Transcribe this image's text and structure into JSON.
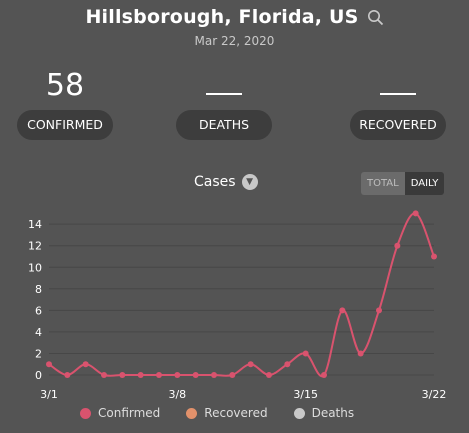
{
  "location": {
    "title": "Hillsborough, Florida, US",
    "date": "Mar 22, 2020"
  },
  "stats": [
    {
      "value": "58",
      "label": "CONFIRMED"
    },
    {
      "value": "",
      "label": "DEATHS"
    },
    {
      "value": "",
      "label": "RECOVERED"
    }
  ],
  "chart_controls": {
    "metric": "Cases",
    "toggle": [
      "TOTAL",
      "DAILY"
    ],
    "active": "DAILY"
  },
  "chart_data": {
    "type": "line",
    "x": [
      "3/1",
      "3/2",
      "3/3",
      "3/4",
      "3/5",
      "3/6",
      "3/7",
      "3/8",
      "3/9",
      "3/10",
      "3/11",
      "3/12",
      "3/13",
      "3/14",
      "3/15",
      "3/16",
      "3/17",
      "3/18",
      "3/19",
      "3/20",
      "3/21",
      "3/22"
    ],
    "x_tick_labels": [
      "3/1",
      "3/8",
      "3/15",
      "3/22"
    ],
    "y_ticks": [
      0,
      2,
      4,
      6,
      8,
      10,
      12,
      14
    ],
    "ylim": [
      0,
      15.5
    ],
    "series": [
      {
        "name": "Confirmed",
        "color": "#d9536e",
        "values": [
          1,
          0,
          1,
          0,
          0,
          0,
          0,
          0,
          0,
          0,
          0,
          1,
          0,
          1,
          2,
          0,
          6,
          2,
          6,
          12,
          15,
          11
        ]
      }
    ],
    "grid": true
  },
  "legend": [
    {
      "label": "Confirmed",
      "color": "#d9536e"
    },
    {
      "label": "Recovered",
      "color": "#e2916b"
    },
    {
      "label": "Deaths",
      "color": "#c9c9c9"
    }
  ]
}
